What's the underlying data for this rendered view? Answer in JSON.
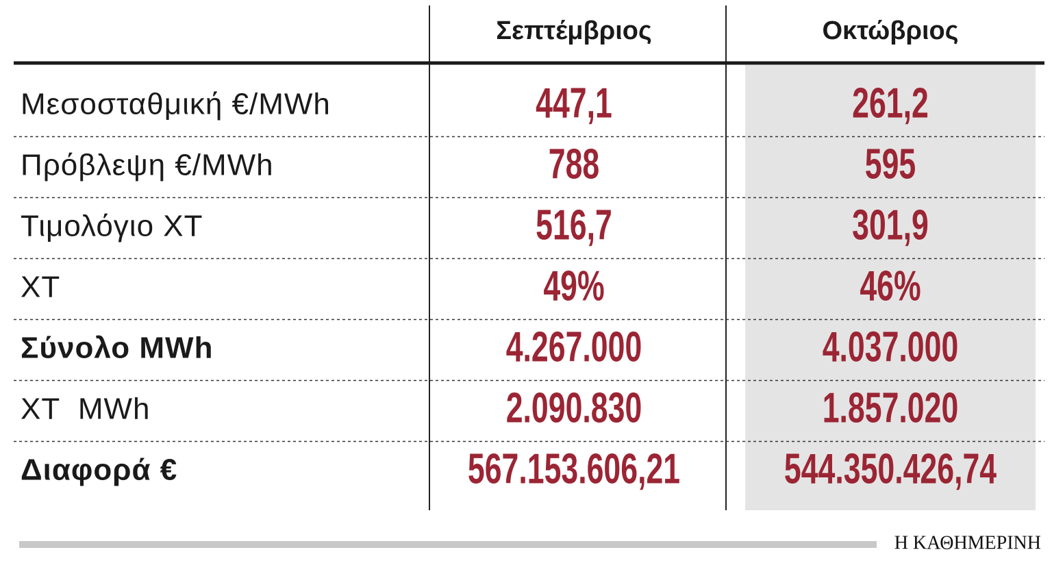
{
  "table": {
    "header": [
      "Σεπτέμβριος",
      "Οκτώβριος"
    ],
    "rows": [
      [
        "Μεσοσταθμική €/MWh",
        "447,1",
        "261,2"
      ],
      [
        "Πρόβλεψη €/MWh",
        "788",
        "595"
      ],
      [
        "Τιμολόγιο ΧΤ",
        "516,7",
        "301,9"
      ],
      [
        "ΧΤ",
        "49%",
        "46%"
      ],
      [
        "Σύνολο MWh",
        "4.267.000",
        "4.037.000"
      ],
      [
        "ΧΤ  MWh",
        "2.090.830",
        "1.857.020"
      ],
      [
        "Διαφορά €",
        "567.153.606,21",
        "544.350.426,74"
      ]
    ]
  },
  "footer": {
    "source": "Η ΚΑΘΗΜΕΡΙΝΗ"
  }
}
